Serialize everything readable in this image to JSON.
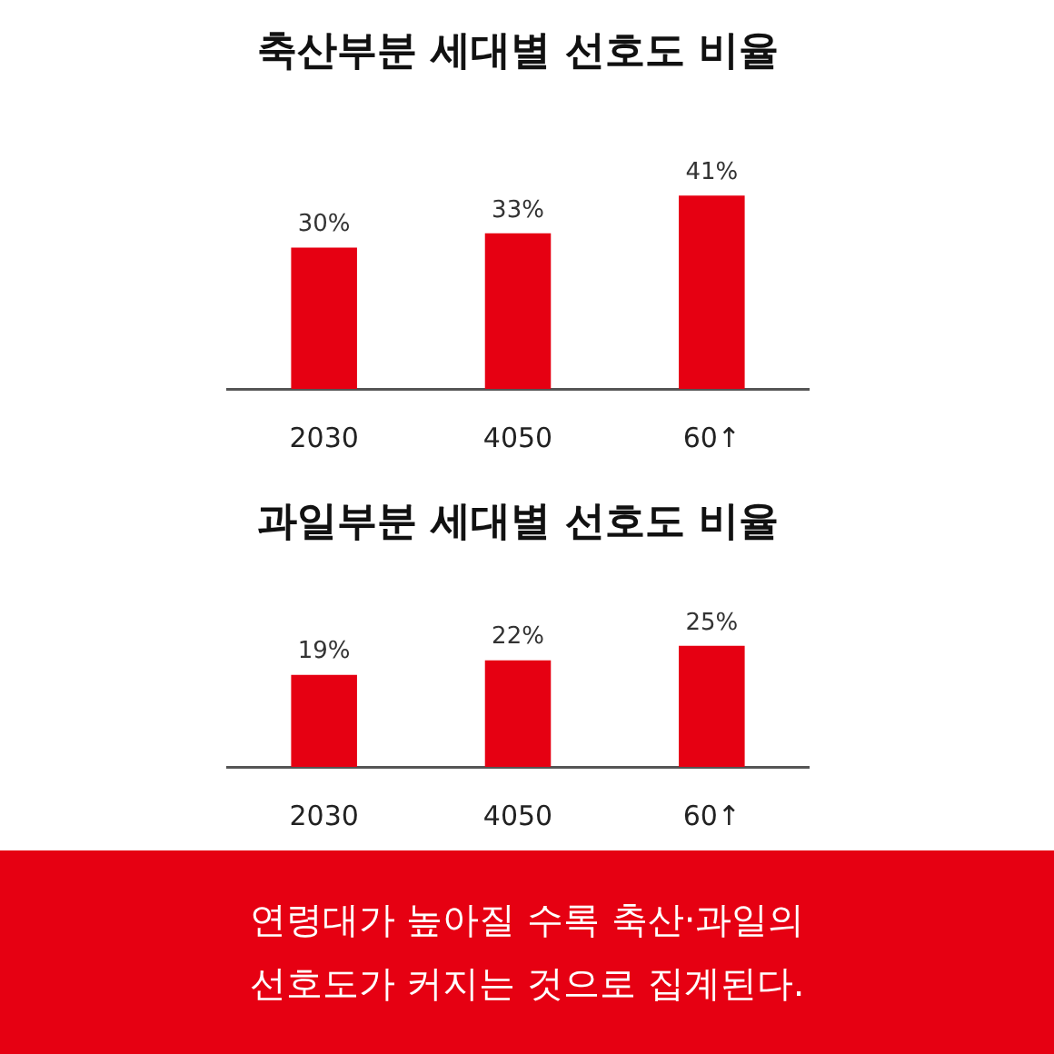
{
  "chart_data": [
    {
      "type": "bar",
      "title": "축산부분 세대별 선호도 비율",
      "categories": [
        "2030",
        "4050",
        "60↑"
      ],
      "values": [
        30,
        33,
        41
      ],
      "color": "#e60012",
      "value_labels": [
        "30%",
        "33%",
        "41%"
      ],
      "grid": false,
      "tick_labels": "x"
    },
    {
      "type": "bar",
      "title": "과일부분 세대별 선호도 비율",
      "categories": [
        "2030",
        "4050",
        "60↑"
      ],
      "values": [
        19,
        22,
        25
      ],
      "color": "#e60012",
      "value_labels": [
        "19%",
        "22%",
        "25%"
      ],
      "grid": false,
      "tick_labels": "x",
      "annotations": [
        "연령대가 높아질 수록 축산·과일의 선호도가 커지는 것으로 집계된다."
      ]
    }
  ]
}
